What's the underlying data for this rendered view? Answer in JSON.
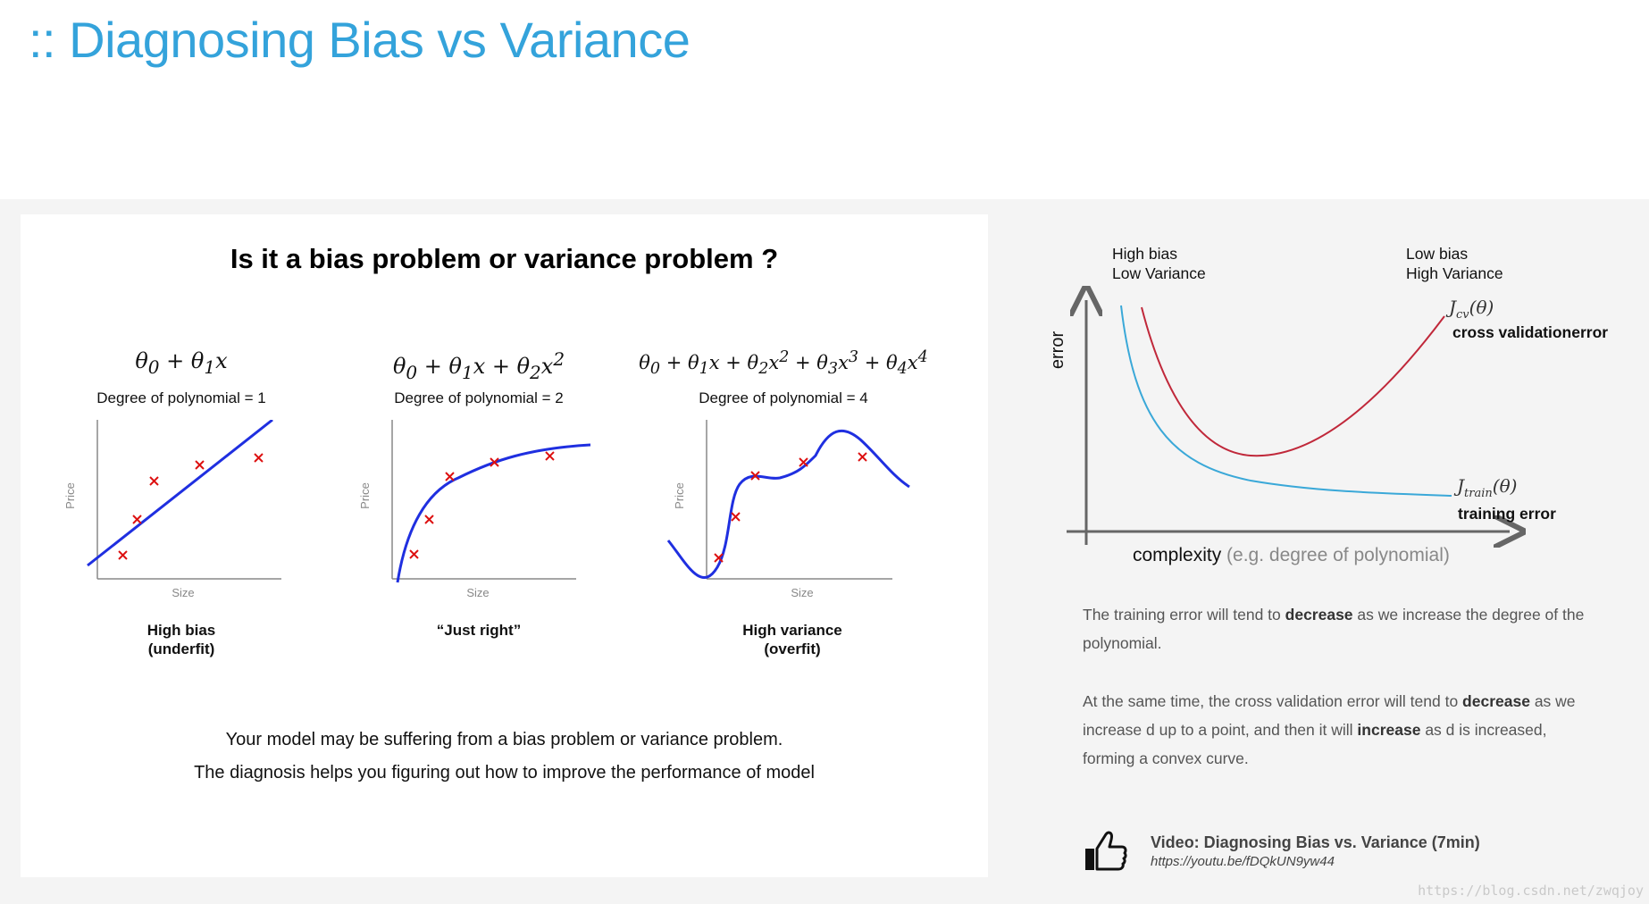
{
  "title": ":: Diagnosing Bias vs Variance",
  "left_card": {
    "heading": "Is it a bias problem or variance problem ?",
    "plots": [
      {
        "formula": "θ₀ + θ₁x",
        "degree": "Degree of polynomial = 1",
        "caption_line1": "High bias",
        "caption_line2": "(underfit)",
        "xlabel": "Size",
        "ylabel": "Price"
      },
      {
        "formula": "θ₀ + θ₁x + θ₂x²",
        "degree": "Degree of polynomial = 2",
        "caption_line1": "“Just right”",
        "caption_line2": "",
        "xlabel": "Size",
        "ylabel": "Price"
      },
      {
        "formula": "θ₀ + θ₁x + θ₂x² + θ₃x³ + θ₄x⁴",
        "degree": "Degree of polynomial = 4",
        "caption_line1": "High variance",
        "caption_line2": "(overfit)",
        "xlabel": "Size",
        "ylabel": "Price"
      }
    ],
    "description_line1": "Your model may be suffering from a bias problem or variance problem.",
    "description_line2": "The diagnosis helps you figuring out how to improve the performance of model"
  },
  "error_chart": {
    "ylabel": "error",
    "xlabel": "complexity",
    "xlabel_note": "(e.g. degree of polynomial)",
    "left_label_line1": "High bias",
    "left_label_line2": "Low Variance",
    "right_label_line1": "Low bias",
    "right_label_line2": "High Variance",
    "cv_formula": "J_cv(θ)",
    "cv_label": "cross validationerror",
    "train_formula": "J_train(θ)",
    "train_label": "training error",
    "colors": {
      "cv": "#c0283a",
      "train": "#3aa8d8"
    }
  },
  "explanation": {
    "p1_pre": "The training error will tend to ",
    "p1_bold": "decrease",
    "p1_post": " as we increase the degree of the polynomial.",
    "p2_pre": "At the same time, the cross validation error will tend to ",
    "p2_bold1": "decrease",
    "p2_mid": " as we increase d up to a point, and then it will ",
    "p2_bold2": "increase",
    "p2_post": " as d is increased, forming a convex curve."
  },
  "video": {
    "icon": "thumbs-up-icon",
    "title": "Video: Diagnosing Bias vs. Variance  (7min)",
    "url": "https://youtu.be/fDQkUN9yw44"
  },
  "watermark": "https://blog.csdn.net/zwqjoy"
}
